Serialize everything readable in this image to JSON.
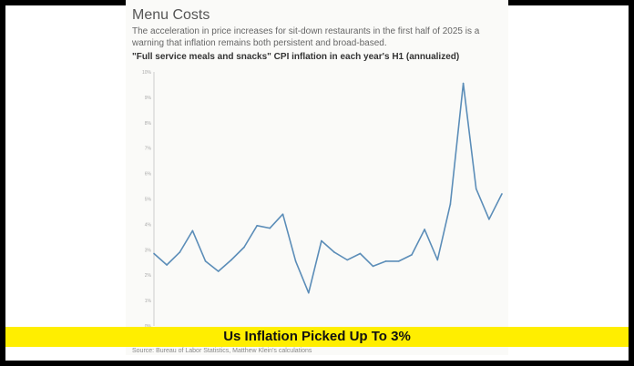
{
  "header": {
    "title": "Menu Costs",
    "subtitle": "The acceleration in price increases for sit-down restaurants in the first half of 2025 is a warning that inflation remains both persistent and broad-based."
  },
  "banner": {
    "text": "Us Inflation Picked Up To 3%",
    "color": "#ffee00"
  },
  "source": "Source: Bureau of Labor Statistics, Matthew Klein's calculations",
  "chart_data": {
    "type": "line",
    "title": "\"Full service meals and snacks\" CPI inflation in each year's H1 (annualized)",
    "xlabel": "",
    "ylabel": "",
    "ylim": [
      0,
      10
    ],
    "yticks": [
      "0%",
      "1%",
      "2%",
      "3%",
      "4%",
      "5%",
      "6%",
      "7%",
      "8%",
      "9%",
      "10%"
    ],
    "grid": false,
    "line_color": "#5b8db8",
    "series": [
      {
        "values": [
          2.85,
          2.4,
          2.9,
          3.75,
          2.55,
          2.15,
          2.6,
          3.1,
          3.95,
          3.85,
          4.4,
          2.55,
          1.3,
          3.35,
          2.9,
          2.6,
          2.85,
          2.35,
          2.55,
          2.55,
          2.8,
          3.8,
          2.6,
          4.8,
          9.55,
          5.4,
          4.2,
          5.2
        ]
      }
    ]
  }
}
